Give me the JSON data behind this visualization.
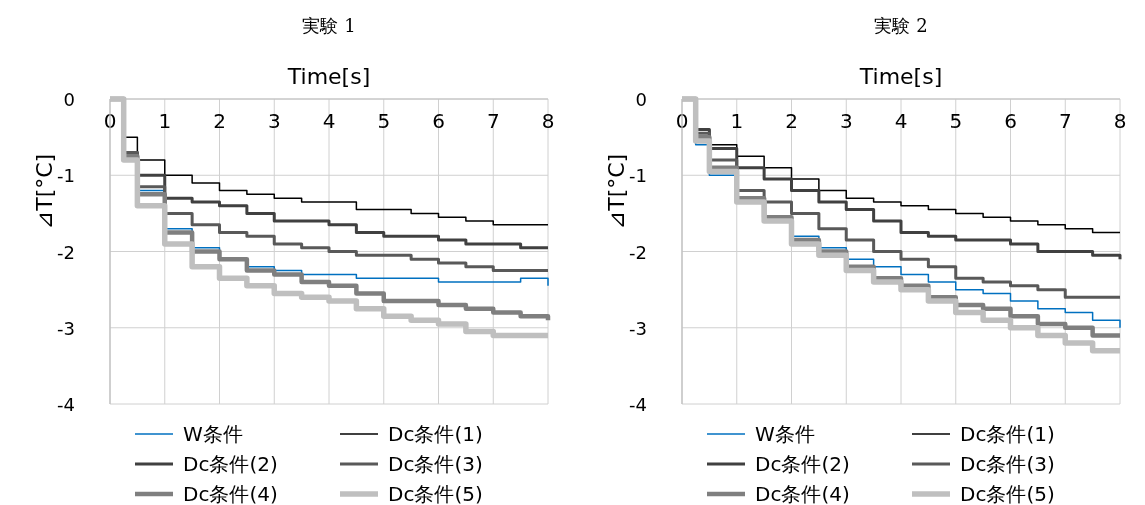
{
  "chart_data": [
    {
      "type": "step",
      "title": "実験 1",
      "xlabel": "Time[s]",
      "ylabel": "⊿T[°C]",
      "xlim": [
        0,
        8
      ],
      "ylim": [
        -4,
        0
      ],
      "xticks": [
        0,
        1,
        2,
        3,
        4,
        5,
        6,
        7,
        8
      ],
      "yticks": [
        0,
        -1,
        -2,
        -3,
        -4
      ],
      "grid": true,
      "legend": "bottom",
      "x": [
        0,
        0.25,
        0.5,
        1,
        1.5,
        2,
        2.5,
        3,
        3.5,
        4,
        4.5,
        5,
        5.5,
        6,
        6.5,
        7,
        7.5,
        8
      ],
      "series": [
        {
          "name": "W条件",
          "color": "#0070c0",
          "values": [
            0,
            -0.8,
            -1.2,
            -1.7,
            -1.95,
            -2.1,
            -2.2,
            -2.25,
            -2.3,
            -2.3,
            -2.35,
            -2.35,
            -2.35,
            -2.4,
            -2.4,
            -2.4,
            -2.35,
            -2.45
          ]
        },
        {
          "name": "Dc条件(1)",
          "color": "#000000",
          "values": [
            0,
            -0.5,
            -0.8,
            -1.0,
            -1.1,
            -1.2,
            -1.25,
            -1.3,
            -1.35,
            -1.35,
            -1.45,
            -1.45,
            -1.5,
            -1.55,
            -1.6,
            -1.65,
            -1.65,
            -1.65
          ]
        },
        {
          "name": "Dc条件(2)",
          "color": "#404040",
          "values": [
            0,
            -0.7,
            -1.0,
            -1.3,
            -1.35,
            -1.4,
            -1.5,
            -1.6,
            -1.6,
            -1.65,
            -1.75,
            -1.8,
            -1.8,
            -1.85,
            -1.9,
            -1.9,
            -1.95,
            -1.95
          ]
        },
        {
          "name": "Dc条件(3)",
          "color": "#595959",
          "values": [
            0,
            -0.7,
            -1.15,
            -1.5,
            -1.65,
            -1.75,
            -1.8,
            -1.9,
            -1.95,
            -2.0,
            -2.05,
            -2.05,
            -2.1,
            -2.15,
            -2.2,
            -2.25,
            -2.25,
            -2.25
          ]
        },
        {
          "name": "Dc条件(4)",
          "color": "#7f7f7f",
          "values": [
            0,
            -0.75,
            -1.25,
            -1.75,
            -2.0,
            -2.1,
            -2.25,
            -2.3,
            -2.4,
            -2.45,
            -2.55,
            -2.65,
            -2.65,
            -2.7,
            -2.75,
            -2.8,
            -2.85,
            -2.9
          ]
        },
        {
          "name": "Dc条件(5)",
          "color": "#bfbfbf",
          "values": [
            0,
            -0.8,
            -1.4,
            -1.9,
            -2.2,
            -2.35,
            -2.45,
            -2.55,
            -2.6,
            -2.65,
            -2.75,
            -2.85,
            -2.9,
            -2.95,
            -3.05,
            -3.1,
            -3.1,
            -3.1
          ]
        }
      ]
    },
    {
      "type": "step",
      "title": "実験 2",
      "xlabel": "Time[s]",
      "ylabel": "⊿T[°C]",
      "xlim": [
        0,
        8
      ],
      "ylim": [
        -4,
        0
      ],
      "xticks": [
        0,
        1,
        2,
        3,
        4,
        5,
        6,
        7,
        8
      ],
      "yticks": [
        0,
        -1,
        -2,
        -3,
        -4
      ],
      "grid": true,
      "legend": "bottom",
      "x": [
        0,
        0.25,
        0.5,
        1,
        1.5,
        2,
        2.5,
        3,
        3.5,
        4,
        4.5,
        5,
        5.5,
        6,
        6.5,
        7,
        7.5,
        8
      ],
      "series": [
        {
          "name": "W条件",
          "color": "#0070c0",
          "values": [
            0,
            -0.6,
            -1.0,
            -1.35,
            -1.55,
            -1.8,
            -1.95,
            -2.1,
            -2.2,
            -2.3,
            -2.4,
            -2.5,
            -2.55,
            -2.65,
            -2.75,
            -2.8,
            -2.9,
            -3.0
          ]
        },
        {
          "name": "Dc条件(1)",
          "color": "#000000",
          "values": [
            0,
            -0.4,
            -0.6,
            -0.75,
            -0.9,
            -1.05,
            -1.2,
            -1.3,
            -1.35,
            -1.4,
            -1.45,
            -1.5,
            -1.55,
            -1.6,
            -1.65,
            -1.7,
            -1.75,
            -1.75
          ]
        },
        {
          "name": "Dc条件(2)",
          "color": "#404040",
          "values": [
            0,
            -0.4,
            -0.65,
            -0.9,
            -1.05,
            -1.2,
            -1.35,
            -1.45,
            -1.6,
            -1.75,
            -1.8,
            -1.85,
            -1.85,
            -1.9,
            -2.0,
            -2.0,
            -2.05,
            -2.1
          ]
        },
        {
          "name": "Dc条件(3)",
          "color": "#595959",
          "values": [
            0,
            -0.45,
            -0.8,
            -1.2,
            -1.35,
            -1.5,
            -1.7,
            -1.85,
            -2.0,
            -2.1,
            -2.2,
            -2.35,
            -2.4,
            -2.45,
            -2.5,
            -2.6,
            -2.6,
            -2.6
          ]
        },
        {
          "name": "Dc条件(4)",
          "color": "#7f7f7f",
          "values": [
            0,
            -0.5,
            -0.9,
            -1.3,
            -1.55,
            -1.85,
            -2.0,
            -2.2,
            -2.35,
            -2.45,
            -2.6,
            -2.7,
            -2.75,
            -2.85,
            -2.95,
            -3.0,
            -3.1,
            -3.1
          ]
        },
        {
          "name": "Dc条件(5)",
          "color": "#bfbfbf",
          "values": [
            0,
            -0.55,
            -0.95,
            -1.35,
            -1.6,
            -1.9,
            -2.05,
            -2.25,
            -2.4,
            -2.5,
            -2.65,
            -2.8,
            -2.9,
            -3.0,
            -3.1,
            -3.2,
            -3.3,
            -3.3
          ]
        }
      ]
    }
  ]
}
